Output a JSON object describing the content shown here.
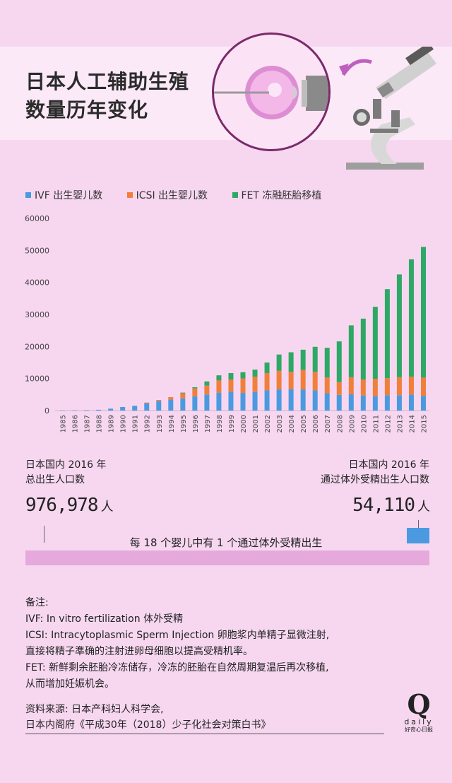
{
  "title": {
    "line1": "日本人工辅助生殖",
    "line2": "数量历年变化"
  },
  "legend": [
    {
      "label": "IVF 出生婴儿数",
      "color": "#4b9ae0"
    },
    {
      "label": "ICSI 出生婴儿数",
      "color": "#f07f3c"
    },
    {
      "label": "FET 冻融胚胎移植",
      "color": "#2ea866"
    }
  ],
  "chart_data": {
    "type": "bar",
    "stacked": true,
    "categories": [
      "1985",
      "1986",
      "1987",
      "1988",
      "1989",
      "1990",
      "1991",
      "1992",
      "1993",
      "1994",
      "1995",
      "1996",
      "1997",
      "1998",
      "1999",
      "2000",
      "2001",
      "2002",
      "2003",
      "2004",
      "2005",
      "2006",
      "2007",
      "2008",
      "2009",
      "2010",
      "2011",
      "2012",
      "2013",
      "2014",
      "2015"
    ],
    "series": [
      {
        "name": "IVF 出生婴儿数",
        "color": "#4b9ae0",
        "values": [
          30,
          100,
          150,
          250,
          600,
          1100,
          1500,
          2300,
          3000,
          3400,
          3800,
          4400,
          5000,
          5600,
          5900,
          5500,
          5800,
          6300,
          6600,
          6700,
          6600,
          6300,
          5400,
          4900,
          5100,
          4700,
          4500,
          4800,
          4800,
          5000,
          4600
        ]
      },
      {
        "name": "ICSI 出生婴儿数",
        "color": "#f07f3c",
        "values": [
          0,
          0,
          0,
          0,
          0,
          0,
          0,
          200,
          300,
          800,
          1600,
          2500,
          2800,
          3800,
          3800,
          4500,
          4800,
          5400,
          5800,
          5400,
          6100,
          5800,
          4900,
          4000,
          5300,
          5000,
          5400,
          5300,
          5600,
          5600,
          5700
        ]
      },
      {
        "name": "FET 冻融胚胎移植",
        "color": "#2ea866",
        "values": [
          0,
          0,
          0,
          0,
          0,
          0,
          0,
          0,
          0,
          0,
          200,
          400,
          1300,
          1600,
          2000,
          2000,
          2200,
          3300,
          5100,
          6100,
          6300,
          7800,
          9300,
          12700,
          16200,
          19000,
          22500,
          27800,
          32100,
          36600,
          40800
        ]
      }
    ],
    "ylim": [
      0,
      60000
    ],
    "yticks": [
      0,
      10000,
      20000,
      30000,
      40000,
      50000,
      60000
    ],
    "legend_position": "top-left",
    "grid": false
  },
  "stats": {
    "left_label_1": "日本国内 2016 年",
    "left_label_2": "总出生人口数",
    "left_value": "976,978",
    "left_unit": "人",
    "right_label_1": "日本国内 2016 年",
    "right_label_2": "通过体外受精出生人口数",
    "right_value": "54,110",
    "right_unit": "人",
    "ratio_text": "每 18 个婴儿中有 1 个通过体外受精出生",
    "ivf_share": 0.0554
  },
  "notes": [
    "备注:",
    "IVF:  In vitro fertilization 体外受精",
    "ICSI: Intracytoplasmic Sperm Injection 卵胞浆内单精子显微注射,",
    "直接将精子準确的注射进卵母细胞以提高受精机率。",
    "FET: 新鲜剩余胚胎冷冻储存，冷冻的胚胎在自然周期复温后再次移植,",
    "从而增加妊娠机会。"
  ],
  "sources": [
    "资料来源: 日本产科妇人科学会,",
    "日本内阁府《平成30年（2018）少子化社会对策白书》"
  ],
  "logo": {
    "letter": "Q",
    "word": "daily",
    "sub": "好奇心日报"
  },
  "colors": {
    "background": "#f7d7f0",
    "banner": "#fbe9f7",
    "accent": "#7a2a6a",
    "bar_pink": "#e6a9dc"
  }
}
